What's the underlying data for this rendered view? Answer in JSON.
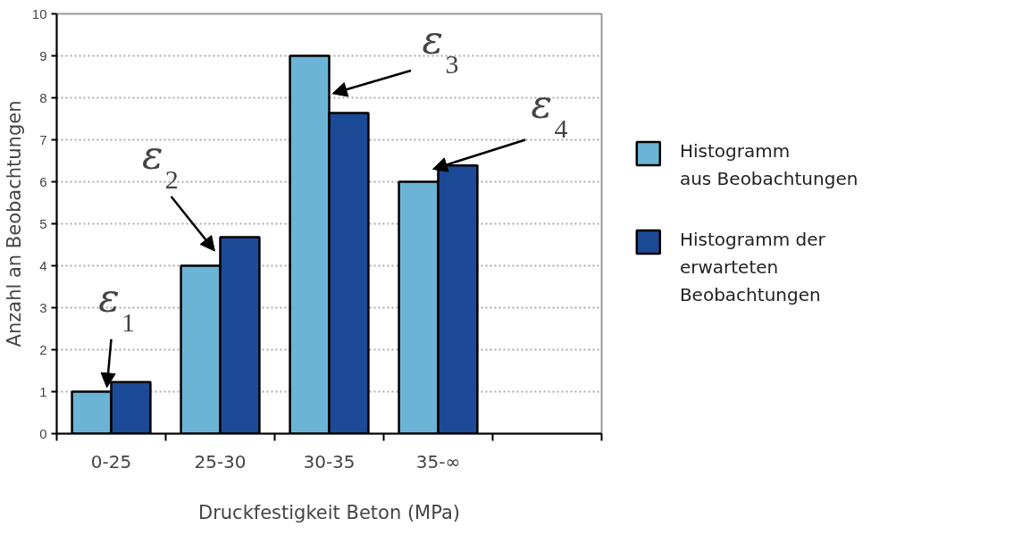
{
  "chart_data": {
    "type": "bar",
    "categories": [
      "0-25",
      "25-30",
      "30-35",
      "35-∞",
      null
    ],
    "series": [
      {
        "name": "Histogramm\naus Beobachtungen",
        "color": "#6cb4d6",
        "values": [
          1,
          4,
          9,
          6,
          null
        ]
      },
      {
        "name": "Histogramm der\nerwarteten\nBeobachtungen",
        "color": "#1c4a96",
        "values": [
          1.23,
          4.68,
          7.64,
          6.39,
          null
        ]
      }
    ],
    "xlabel": "Druckfestigkeit Beton (MPa)",
    "ylabel": "Anzahl an Beobachtungen",
    "ylim": [
      0,
      10
    ],
    "yticks": [
      0,
      1,
      2,
      3,
      4,
      5,
      6,
      7,
      8,
      9,
      10
    ],
    "grid": "y",
    "legend": "right",
    "annotations": [
      {
        "text": "ε$_{1}$",
        "x": "0-25",
        "y": 1.1
      },
      {
        "text": "ε$_{2}$",
        "x": "25-30",
        "y": 4.35
      },
      {
        "text": "ε$_{3}$",
        "x": "30-35",
        "y": 8.1
      },
      {
        "text": "ε$_{4}$",
        "x": "35-∞",
        "y": 6.3
      }
    ]
  }
}
